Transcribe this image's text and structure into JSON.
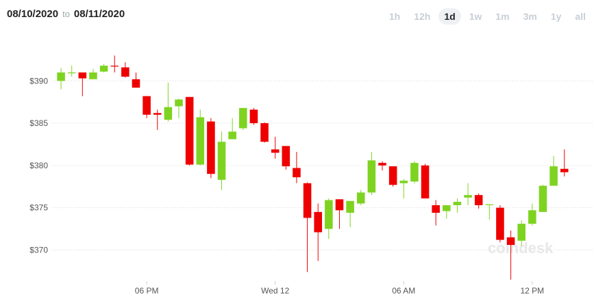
{
  "header": {
    "from": "08/10/2020",
    "separator": "to",
    "to": "08/11/2020"
  },
  "ranges": [
    "1h",
    "12h",
    "1d",
    "1w",
    "1m",
    "3m",
    "1y",
    "all"
  ],
  "selected_range": 2,
  "chart_data": {
    "type": "candlestick",
    "watermark": "coindesk",
    "up_color": "#7ed321",
    "down_color": "#ee0000",
    "grid": true,
    "x": [
      0,
      0.5,
      1,
      1.5,
      2,
      2.5,
      3,
      3.5,
      4,
      4.5,
      5,
      5.5,
      6,
      6.5,
      7,
      7.5,
      8,
      8.5,
      9,
      9.5,
      10,
      10.5,
      11,
      11.5,
      12,
      12.5,
      13,
      13.5,
      14,
      14.5,
      15,
      15.5,
      16,
      16.5,
      17,
      17.5,
      18,
      18.5,
      19,
      19.5,
      20,
      20.5,
      21,
      21.5,
      22,
      22.5,
      23,
      23.5
    ],
    "open": [
      390.0,
      390.9,
      391.0,
      390.2,
      391.1,
      391.8,
      391.6,
      390.2,
      388.2,
      386.2,
      385.4,
      387.0,
      388.1,
      380.1,
      385.2,
      378.3,
      383.1,
      384.4,
      386.6,
      385.0,
      381.9,
      382.3,
      379.7,
      377.9,
      374.5,
      372.5,
      376.0,
      374.4,
      375.5,
      376.8,
      380.3,
      379.9,
      377.9,
      378.1,
      380.0,
      375.3,
      374.6,
      375.3,
      376.2,
      376.5,
      375.3,
      375.0,
      371.5,
      371.1,
      373.1,
      374.5,
      377.6,
      379.6
    ],
    "high": [
      391.5,
      391.8,
      391.0,
      391.4,
      392.0,
      393.0,
      392.2,
      391.0,
      388.2,
      386.6,
      389.8,
      387.9,
      388.1,
      386.6,
      385.6,
      384.0,
      385.6,
      386.8,
      386.8,
      385.1,
      383.4,
      382.3,
      381.6,
      378.0,
      375.5,
      376.1,
      376.0,
      375.8,
      377.1,
      381.6,
      380.5,
      379.9,
      378.4,
      380.5,
      380.2,
      375.9,
      375.3,
      376.1,
      377.9,
      376.7,
      375.4,
      375.3,
      372.3,
      373.5,
      375.5,
      377.7,
      381.1,
      381.9
    ],
    "low": [
      389.0,
      390.5,
      388.2,
      390.2,
      391.0,
      391.0,
      390.4,
      389.2,
      385.6,
      384.2,
      385.2,
      385.6,
      380.0,
      380.0,
      378.5,
      377.1,
      383.1,
      384.2,
      384.8,
      382.7,
      380.8,
      379.5,
      377.9,
      367.4,
      368.7,
      371.3,
      372.5,
      372.7,
      375.3,
      376.5,
      379.4,
      377.5,
      376.1,
      377.9,
      376.1,
      372.9,
      373.7,
      374.4,
      375.3,
      374.9,
      373.6,
      370.9,
      366.5,
      370.5,
      372.9,
      374.5,
      377.6,
      378.7
    ],
    "close": [
      391.0,
      391.0,
      390.3,
      391.0,
      391.8,
      391.7,
      390.5,
      389.2,
      386.0,
      386.0,
      386.9,
      387.8,
      380.1,
      385.7,
      379.0,
      382.8,
      384.0,
      386.8,
      385.0,
      382.8,
      381.5,
      379.9,
      378.6,
      373.8,
      372.1,
      375.9,
      374.7,
      375.8,
      376.8,
      380.6,
      380.0,
      377.7,
      378.2,
      380.3,
      376.1,
      374.4,
      375.3,
      375.7,
      376.5,
      375.3,
      375.4,
      371.2,
      370.6,
      373.1,
      374.7,
      377.6,
      379.9,
      379.2
    ],
    "ylim": [
      366.8,
      393.5
    ],
    "yticks": [
      {
        "value": 370,
        "label": "$370"
      },
      {
        "value": 375,
        "label": "$375"
      },
      {
        "value": 380,
        "label": "$380"
      },
      {
        "value": 385,
        "label": "$385"
      },
      {
        "value": 390,
        "label": "$390"
      }
    ],
    "xlim": [
      -0.45,
      24.5
    ],
    "xticks": [
      {
        "value": 4,
        "label": "06 PM"
      },
      {
        "value": 10,
        "label": "Wed 12"
      },
      {
        "value": 16,
        "label": "06 AM"
      },
      {
        "value": 22,
        "label": "12 PM"
      }
    ]
  }
}
